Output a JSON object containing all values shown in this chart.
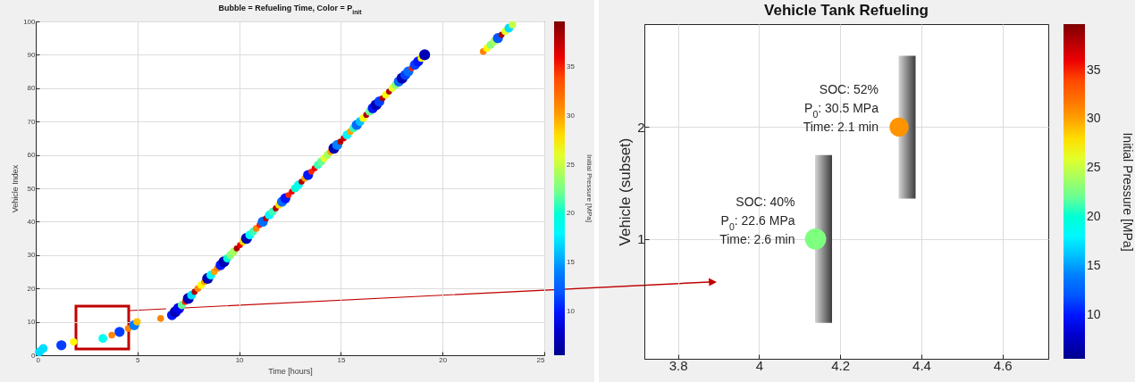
{
  "chart_data": [
    {
      "type": "bubble",
      "title": "Bubble = Refueling Time, Color = P$_{init}$",
      "xlabel": "Time [hours]",
      "ylabel": "Vehicle Index",
      "clabel": "Initial Pressure [MPa]",
      "x": [
        0.18,
        0.37,
        1.26,
        1.86,
        3.3,
        3.74,
        4.12,
        4.55,
        4.84,
        4.98,
        6.14,
        6.7,
        6.86,
        7.02,
        7.18,
        7.34,
        7.5,
        7.66,
        7.81,
        7.97,
        8.13,
        8.29,
        8.45,
        8.61,
        8.77,
        8.93,
        9.09,
        9.25,
        9.41,
        9.57,
        9.73,
        9.88,
        10.04,
        10.2,
        10.36,
        10.52,
        10.68,
        10.84,
        11.0,
        11.16,
        11.32,
        11.48,
        11.64,
        11.8,
        11.96,
        12.11,
        12.27,
        12.43,
        12.59,
        12.75,
        12.91,
        13.07,
        13.23,
        13.39,
        13.55,
        13.71,
        13.87,
        14.03,
        14.18,
        14.34,
        14.5,
        14.66,
        14.82,
        14.98,
        15.14,
        15.3,
        15.46,
        15.62,
        15.78,
        15.94,
        16.1,
        16.25,
        16.41,
        16.57,
        16.73,
        16.89,
        17.05,
        17.21,
        17.37,
        17.53,
        17.69,
        17.85,
        18.01,
        18.17,
        18.32,
        18.48,
        18.64,
        18.8,
        18.96,
        19.12,
        22.0,
        22.18,
        22.36,
        22.54,
        22.72,
        22.9,
        23.08,
        23.26,
        23.44
      ],
      "values": [
        1,
        2,
        3,
        4,
        5,
        6,
        7,
        8,
        9,
        10,
        11,
        12,
        13,
        14,
        15,
        16,
        17,
        18,
        19,
        20,
        21,
        22,
        23,
        24,
        25,
        26,
        27,
        28,
        29,
        30,
        31,
        32,
        33,
        34,
        35,
        36,
        37,
        38,
        39,
        40,
        41,
        42,
        43,
        44,
        45,
        46,
        47,
        48,
        49,
        50,
        51,
        52,
        53,
        54,
        55,
        56,
        57,
        58,
        59,
        60,
        61,
        62,
        63,
        64,
        65,
        66,
        67,
        68,
        69,
        70,
        71,
        72,
        73,
        74,
        75,
        76,
        77,
        78,
        79,
        80,
        81,
        82,
        83,
        84,
        85,
        86,
        87,
        88,
        89,
        90,
        91,
        92,
        93,
        94,
        95,
        96,
        97,
        98,
        99
      ],
      "cvalues": [
        17,
        17,
        11,
        27,
        19,
        31,
        11,
        31,
        14,
        29,
        31,
        10,
        7,
        9,
        22,
        35,
        7,
        17,
        38,
        31,
        27,
        30,
        7,
        18,
        30,
        31,
        10,
        7,
        20,
        23,
        24,
        38,
        36,
        28,
        7,
        18,
        21,
        31,
        35,
        13,
        38,
        18,
        21,
        38,
        28,
        13,
        10,
        35,
        36,
        20,
        19,
        38,
        30,
        10,
        35,
        36,
        21,
        22,
        26,
        24,
        30,
        7,
        14,
        38,
        37,
        18,
        30,
        21,
        13,
        16,
        27,
        38,
        22,
        10,
        7,
        11,
        38,
        27,
        38,
        26,
        23,
        13,
        7,
        11,
        13,
        35,
        11,
        10,
        27,
        7,
        31,
        27,
        23,
        24,
        12,
        38,
        26,
        17,
        25
      ],
      "sizes": [
        0.65,
        0.65,
        0.85,
        0.45,
        0.65,
        0.38,
        0.85,
        0.38,
        0.85,
        0.45,
        0.38,
        0.85,
        1,
        1,
        0.55,
        0.3,
        1,
        0.65,
        0.3,
        0.38,
        0.45,
        0.38,
        1,
        0.65,
        0.38,
        0.38,
        0.85,
        1,
        0.55,
        0.55,
        0.55,
        0.3,
        0.3,
        0.45,
        1,
        0.65,
        0.55,
        0.38,
        0.3,
        0.85,
        0.3,
        0.65,
        0.55,
        0.3,
        0.45,
        0.85,
        0.85,
        0.3,
        0.3,
        0.55,
        0.65,
        0.3,
        0.38,
        0.85,
        0.3,
        0.3,
        0.55,
        0.55,
        0.45,
        0.55,
        0.38,
        1,
        0.85,
        0.3,
        0.3,
        0.65,
        0.38,
        0.55,
        0.85,
        0.65,
        0.45,
        0.3,
        0.55,
        0.85,
        1,
        0.85,
        0.3,
        0.45,
        0.3,
        0.45,
        0.55,
        0.85,
        1,
        0.85,
        0.85,
        0.3,
        0.85,
        0.85,
        0.45,
        1,
        0.38,
        0.45,
        0.55,
        0.55,
        0.85,
        0.3,
        0.45,
        0.65,
        0.45
      ],
      "xlim": [
        0,
        25
      ],
      "xticks": [
        0,
        5,
        10,
        15,
        20,
        25
      ],
      "ylim": [
        0,
        100
      ],
      "yticks": [
        0,
        10,
        20,
        30,
        40,
        50,
        60,
        70,
        80,
        90,
        100
      ],
      "clim": [
        5.5,
        39.7
      ],
      "cticks": [
        10,
        15,
        20,
        25,
        30,
        35
      ],
      "grid": true
    },
    {
      "type": "bubble",
      "title": "Vehicle Tank Refueling",
      "ylabel": "Vehicle (subset)",
      "clabel": "Initial Pressure [MPa]",
      "x": [
        4.139,
        4.345
      ],
      "values": [
        1,
        2
      ],
      "cvalues": [
        22.6,
        30.5
      ],
      "sizes": [
        1,
        0.81
      ],
      "xlim": [
        3.717,
        4.713
      ],
      "xticks": [
        3.8,
        4,
        4.2,
        4.4,
        4.6
      ],
      "ylim": [
        -0.07,
        2.92
      ],
      "yticks": [
        1,
        2
      ],
      "clim": [
        5.5,
        39.7
      ],
      "cticks": [
        10,
        15,
        20,
        25,
        30,
        35
      ],
      "grid": true,
      "annotations": [
        {
          "text": "SOC: 40%\nP$_{0}$: 22.6 MPa\nTime: 2.6 min",
          "x": 4.139,
          "y": 1
        },
        {
          "text": "SOC: 52%\nP$_{0}$: 30.5 MPa\nTime: 2.1 min",
          "x": 4.345,
          "y": 2
        }
      ]
    }
  ]
}
